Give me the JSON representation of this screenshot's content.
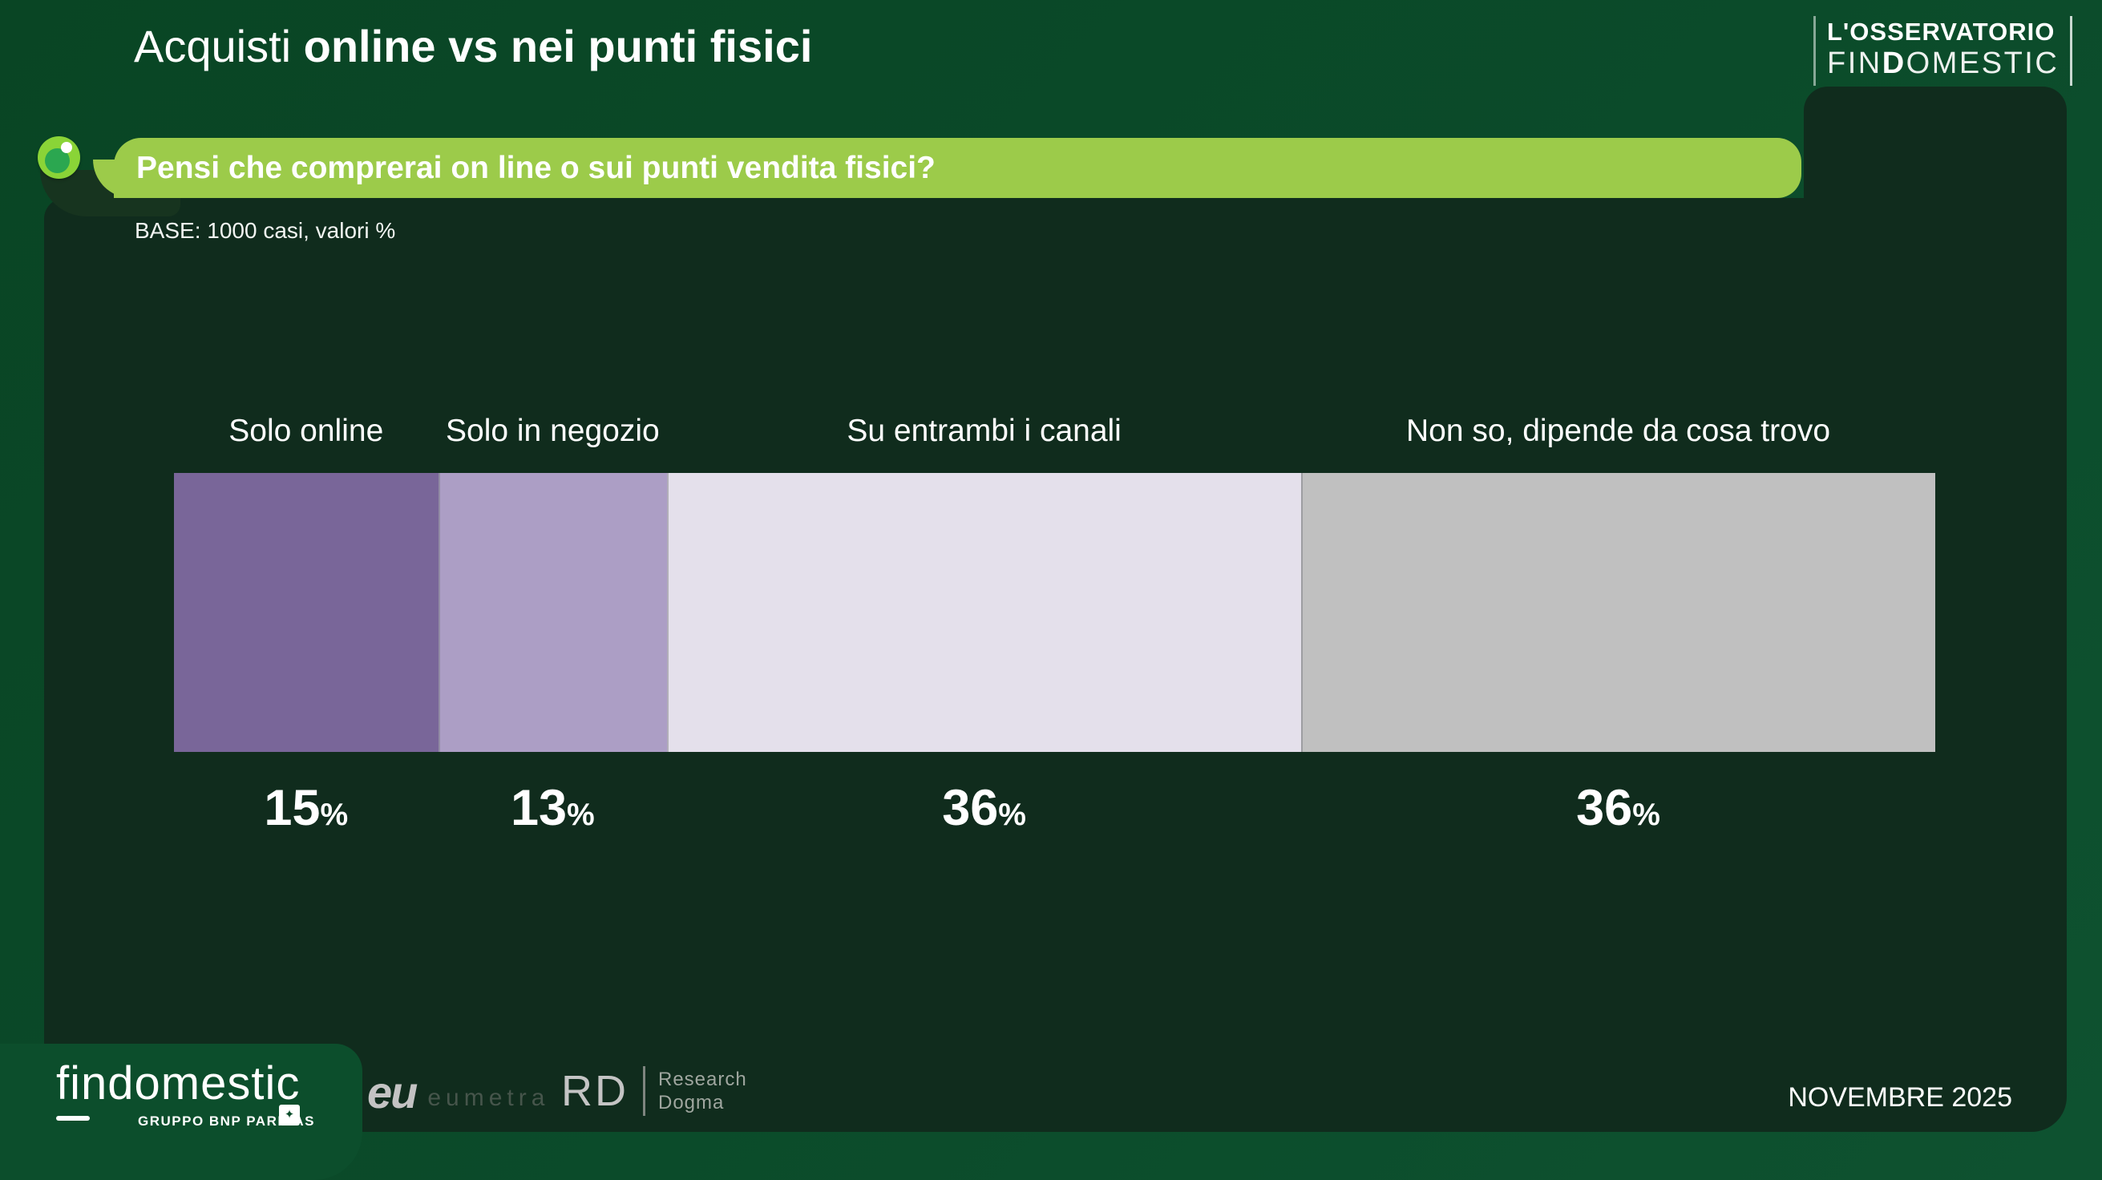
{
  "slide": {
    "title_regular": "Acquisti ",
    "title_bold": "online vs nei punti fisici",
    "question": "Pensi che comprerai on line o sui punti vendita fisici?",
    "base_note": "BASE: 1000 casi, valori %",
    "date": "NOVEMBRE 2025"
  },
  "observatory_logo": {
    "line1": "L'OSSERVATORIO",
    "line2_pre": "FIN",
    "line2_bold": "D",
    "line2_post": "OMESTIC"
  },
  "footer": {
    "brand": "findomestic",
    "brand_sub": "GRUPPO BNP PARIBAS",
    "bnp_mark": "✦",
    "partner1_mark": "eu",
    "partner1_name": "eumetra",
    "partner2_mark": "RD",
    "partner2_line1": "Research",
    "partner2_line2": "Dogma"
  },
  "colors": {
    "background_green": "#0B4B2A",
    "panel_green": "#102C1D",
    "pill_green": "#9CCB4A",
    "eye_outer": "#8AD437",
    "eye_pupil": "#2BA750",
    "text": "#FFFFFF"
  },
  "chart_data": {
    "type": "bar",
    "orientation": "horizontal-stacked",
    "title": "Pensi che comprerai on line o sui punti vendita fisici?",
    "base": "BASE: 1000 casi, valori %",
    "categories": [
      "Solo online",
      "Solo in negozio",
      "Su entrambi i canali",
      "Non so, dipende da cosa trovo"
    ],
    "values": [
      15,
      13,
      36,
      36
    ],
    "unit": "%",
    "segment_colors": [
      "#796699",
      "#AC9EC5",
      "#E4E0EB",
      "#C0C0C0"
    ],
    "value_labels": [
      "15%",
      "13%",
      "36%",
      "36%"
    ],
    "legend_position": "none",
    "grid": false
  }
}
